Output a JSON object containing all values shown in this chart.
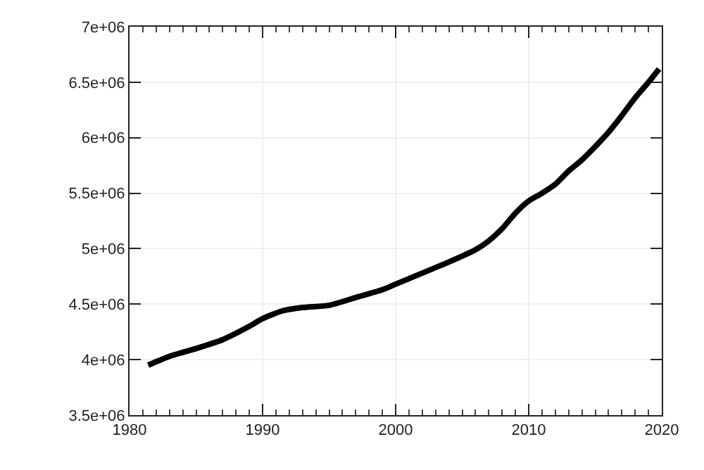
{
  "chart_data": {
    "type": "line",
    "x": [
      1981.4,
      1983,
      1985,
      1987,
      1989,
      1990,
      1991.5,
      1993,
      1995,
      1997,
      1999,
      2000,
      2002,
      2004,
      2006,
      2007,
      2008,
      2009,
      2010,
      2011,
      2012,
      2013,
      2014,
      2015,
      2016,
      2017,
      2018,
      2019,
      2019.8
    ],
    "series": [
      {
        "color": "#000000",
        "values": [
          3950000,
          4030000,
          4100000,
          4180000,
          4300000,
          4370000,
          4440000,
          4470000,
          4490000,
          4560000,
          4630000,
          4680000,
          4780000,
          4880000,
          4990000,
          5070000,
          5180000,
          5320000,
          5430000,
          5500000,
          5580000,
          5700000,
          5800000,
          5920000,
          6050000,
          6200000,
          6360000,
          6500000,
          6620000
        ]
      }
    ],
    "xlim": [
      1980,
      2020
    ],
    "xticks": [
      1980,
      1990,
      2000,
      2010,
      2020
    ],
    "ylim": [
      3500000,
      7000000
    ],
    "yticks": [
      {
        "value": 3500000,
        "label": "3.5e+06"
      },
      {
        "value": 4000000,
        "label": "4e+06"
      },
      {
        "value": 4500000,
        "label": "4.5e+06"
      },
      {
        "value": 5000000,
        "label": "5e+06"
      },
      {
        "value": 5500000,
        "label": "5.5e+06"
      },
      {
        "value": 6000000,
        "label": "6e+06"
      },
      {
        "value": 6500000,
        "label": "6.5e+06"
      },
      {
        "value": 7000000,
        "label": "7e+06"
      }
    ],
    "grid": true,
    "line_style": "solid",
    "marker": "none",
    "legend": false
  }
}
